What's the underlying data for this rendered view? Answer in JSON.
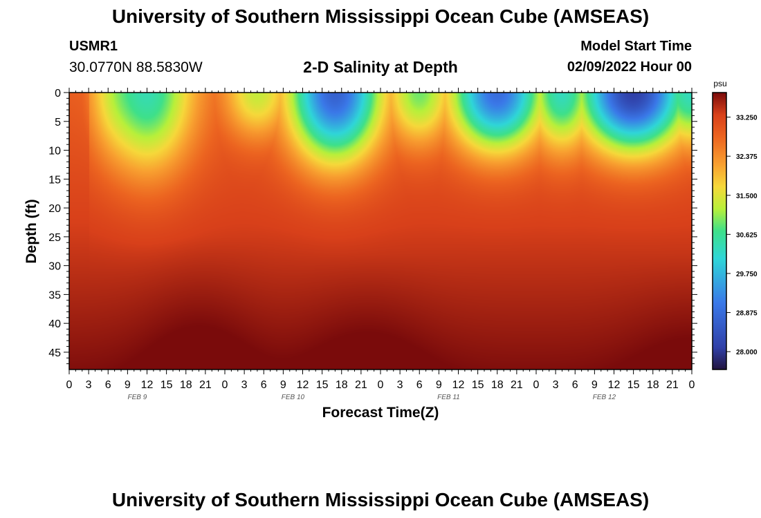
{
  "header": {
    "title": "University of Southern Mississippi Ocean Cube (AMSEAS)",
    "station_id": "USMR1",
    "coordinates": "30.0770N  88.5830W",
    "subtitle": "2-D Salinity at Depth",
    "model_start_label": "Model Start Time",
    "model_start_value": "02/09/2022 Hour 00"
  },
  "footer": {
    "title": "University of Southern Mississippi Ocean Cube (AMSEAS)"
  },
  "chart_data": {
    "type": "heatmap",
    "title": "2-D Salinity at Depth",
    "xlabel": "Forecast Time(Z)",
    "ylabel": "Depth (ft)",
    "x_tick_labels": [
      "0",
      "3",
      "6",
      "9",
      "12",
      "15",
      "18",
      "21",
      "0",
      "3",
      "6",
      "9",
      "12",
      "15",
      "18",
      "21",
      "0",
      "3",
      "6",
      "9",
      "12",
      "15",
      "18",
      "21",
      "0",
      "3",
      "6",
      "9",
      "12",
      "15",
      "18",
      "21",
      "0"
    ],
    "day_labels": [
      "FEB 9",
      "FEB 10",
      "FEB 11",
      "FEB 12"
    ],
    "xlim": [
      0,
      96
    ],
    "ylim": [
      0,
      48
    ],
    "y_ticks": [
      0,
      5,
      10,
      15,
      20,
      25,
      30,
      35,
      40,
      45
    ],
    "colorbar": {
      "unit": "psu",
      "ticks": [
        "33.250",
        "32.375",
        "31.500",
        "30.625",
        "29.750",
        "28.875",
        "28.000"
      ],
      "range": [
        27.6,
        33.8
      ]
    },
    "features": [
      {
        "label": "low salinity surface pocket",
        "hour": 12,
        "min_psu": 30.0
      },
      {
        "label": "low salinity surface pocket",
        "hour": 41,
        "min_psu": 28.3
      },
      {
        "label": "low salinity surface pocket",
        "hour": 66,
        "min_psu": 28.4
      },
      {
        "label": "low salinity surface pocket",
        "hour": 87,
        "min_psu": 27.6
      }
    ]
  }
}
